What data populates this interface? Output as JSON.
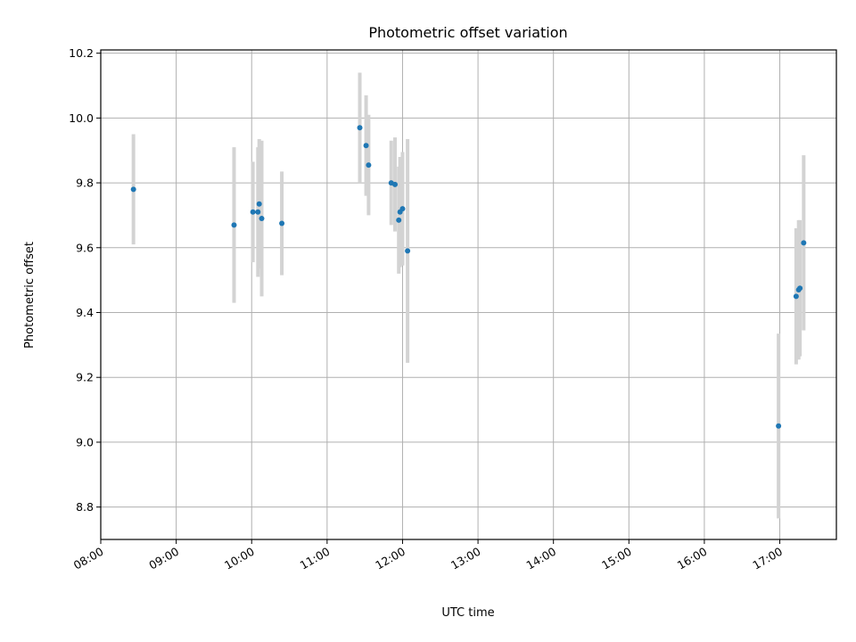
{
  "chart_data": {
    "type": "scatter",
    "title": "Photometric offset variation",
    "xlabel": "UTC time",
    "ylabel": "Photometric offset",
    "x_unit": "hour",
    "xlim": [
      "08:00",
      "17:45"
    ],
    "ylim": [
      8.7,
      10.21
    ],
    "x_ticks": [
      "08:00",
      "09:00",
      "10:00",
      "11:00",
      "12:00",
      "13:00",
      "14:00",
      "15:00",
      "16:00",
      "17:00"
    ],
    "y_ticks": [
      "8.8",
      "9.0",
      "9.2",
      "9.4",
      "9.6",
      "9.8",
      "10.0",
      "10.2"
    ],
    "grid": true,
    "errorbar_color": "#d3d3d3",
    "marker_color": "#1f77b4",
    "points": [
      {
        "x": "08:26",
        "y": 9.78,
        "err": 0.17
      },
      {
        "x": "09:46",
        "y": 9.67,
        "err": 0.24
      },
      {
        "x": "10:01",
        "y": 9.71,
        "err": 0.155
      },
      {
        "x": "10:05",
        "y": 9.71,
        "err": 0.2
      },
      {
        "x": "10:06",
        "y": 9.735,
        "err": 0.2
      },
      {
        "x": "10:08",
        "y": 9.69,
        "err": 0.24
      },
      {
        "x": "10:24",
        "y": 9.675,
        "err": 0.16
      },
      {
        "x": "11:26",
        "y": 9.97,
        "err": 0.17
      },
      {
        "x": "11:31",
        "y": 9.915,
        "err": 0.155
      },
      {
        "x": "11:33",
        "y": 9.855,
        "err": 0.155
      },
      {
        "x": "11:51",
        "y": 9.8,
        "err": 0.13
      },
      {
        "x": "11:54",
        "y": 9.795,
        "err": 0.145
      },
      {
        "x": "11:57",
        "y": 9.685,
        "err": 0.165
      },
      {
        "x": "11:58",
        "y": 9.71,
        "err": 0.17
      },
      {
        "x": "12:00",
        "y": 9.72,
        "err": 0.175
      },
      {
        "x": "12:04",
        "y": 9.59,
        "err": 0.345
      },
      {
        "x": "16:59",
        "y": 9.05,
        "err": 0.285
      },
      {
        "x": "17:13",
        "y": 9.45,
        "err": 0.21
      },
      {
        "x": "17:15",
        "y": 9.47,
        "err": 0.215
      },
      {
        "x": "17:16",
        "y": 9.475,
        "err": 0.21
      },
      {
        "x": "17:19",
        "y": 9.615,
        "err": 0.27
      }
    ]
  }
}
